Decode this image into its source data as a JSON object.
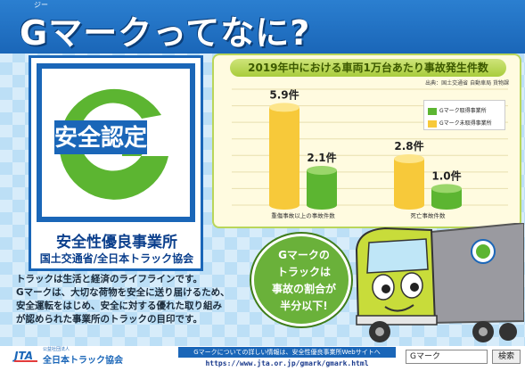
{
  "title": "Gマークってなに?",
  "title_ruby": "ジー",
  "logo": {
    "emblem_text": "安全認定",
    "main_text": "安全性優良事業所",
    "sub_text": "国土交通省/全日本トラック協会",
    "colors": {
      "green": "#5cb531",
      "blue": "#1a66b8"
    }
  },
  "chart_data": {
    "type": "bar",
    "title": "2019年中における車両1万台あたり事故発生件数",
    "source": "出典：国土交通省 自動車局 貨物課",
    "categories": [
      "重傷事故以上の事故件数",
      "死亡事故件数"
    ],
    "series": [
      {
        "name": "Gマーク未取得事業所",
        "color": "#f7c93a",
        "values": [
          5.9,
          2.8
        ]
      },
      {
        "name": "Gマーク取得事業所",
        "color": "#5cb531",
        "values": [
          2.1,
          1.0
        ]
      }
    ],
    "data_labels": [
      "5.9件",
      "2.1件",
      "2.8件",
      "1.0件"
    ],
    "ylim": [
      0,
      7
    ],
    "grid": true,
    "legend": "right"
  },
  "description": {
    "line1": "トラックは生活と経済のライフラインです。",
    "line2": "Gマークは、大切な荷物を安全に送り届けるため、",
    "line3": "安全運転をはじめ、安全に対する優れた取り組み",
    "line4": "が認められた事業所のトラックの目印です。",
    "ruby": "めじるし"
  },
  "bubble": {
    "line1": "Gマークの",
    "line2": "トラックは",
    "line3": "事故の割合が",
    "line4": "半分以下!"
  },
  "footer": {
    "jta_small": "公益社団法人",
    "jta_name": "全日本トラック協会",
    "info": "Gマークについての詳しい情報は、安全性優良事業所Webサイトへ",
    "url": "https://www.jta.or.jp/gmark/gmark.html",
    "search_value": "Gマーク",
    "search_button": "検索"
  }
}
